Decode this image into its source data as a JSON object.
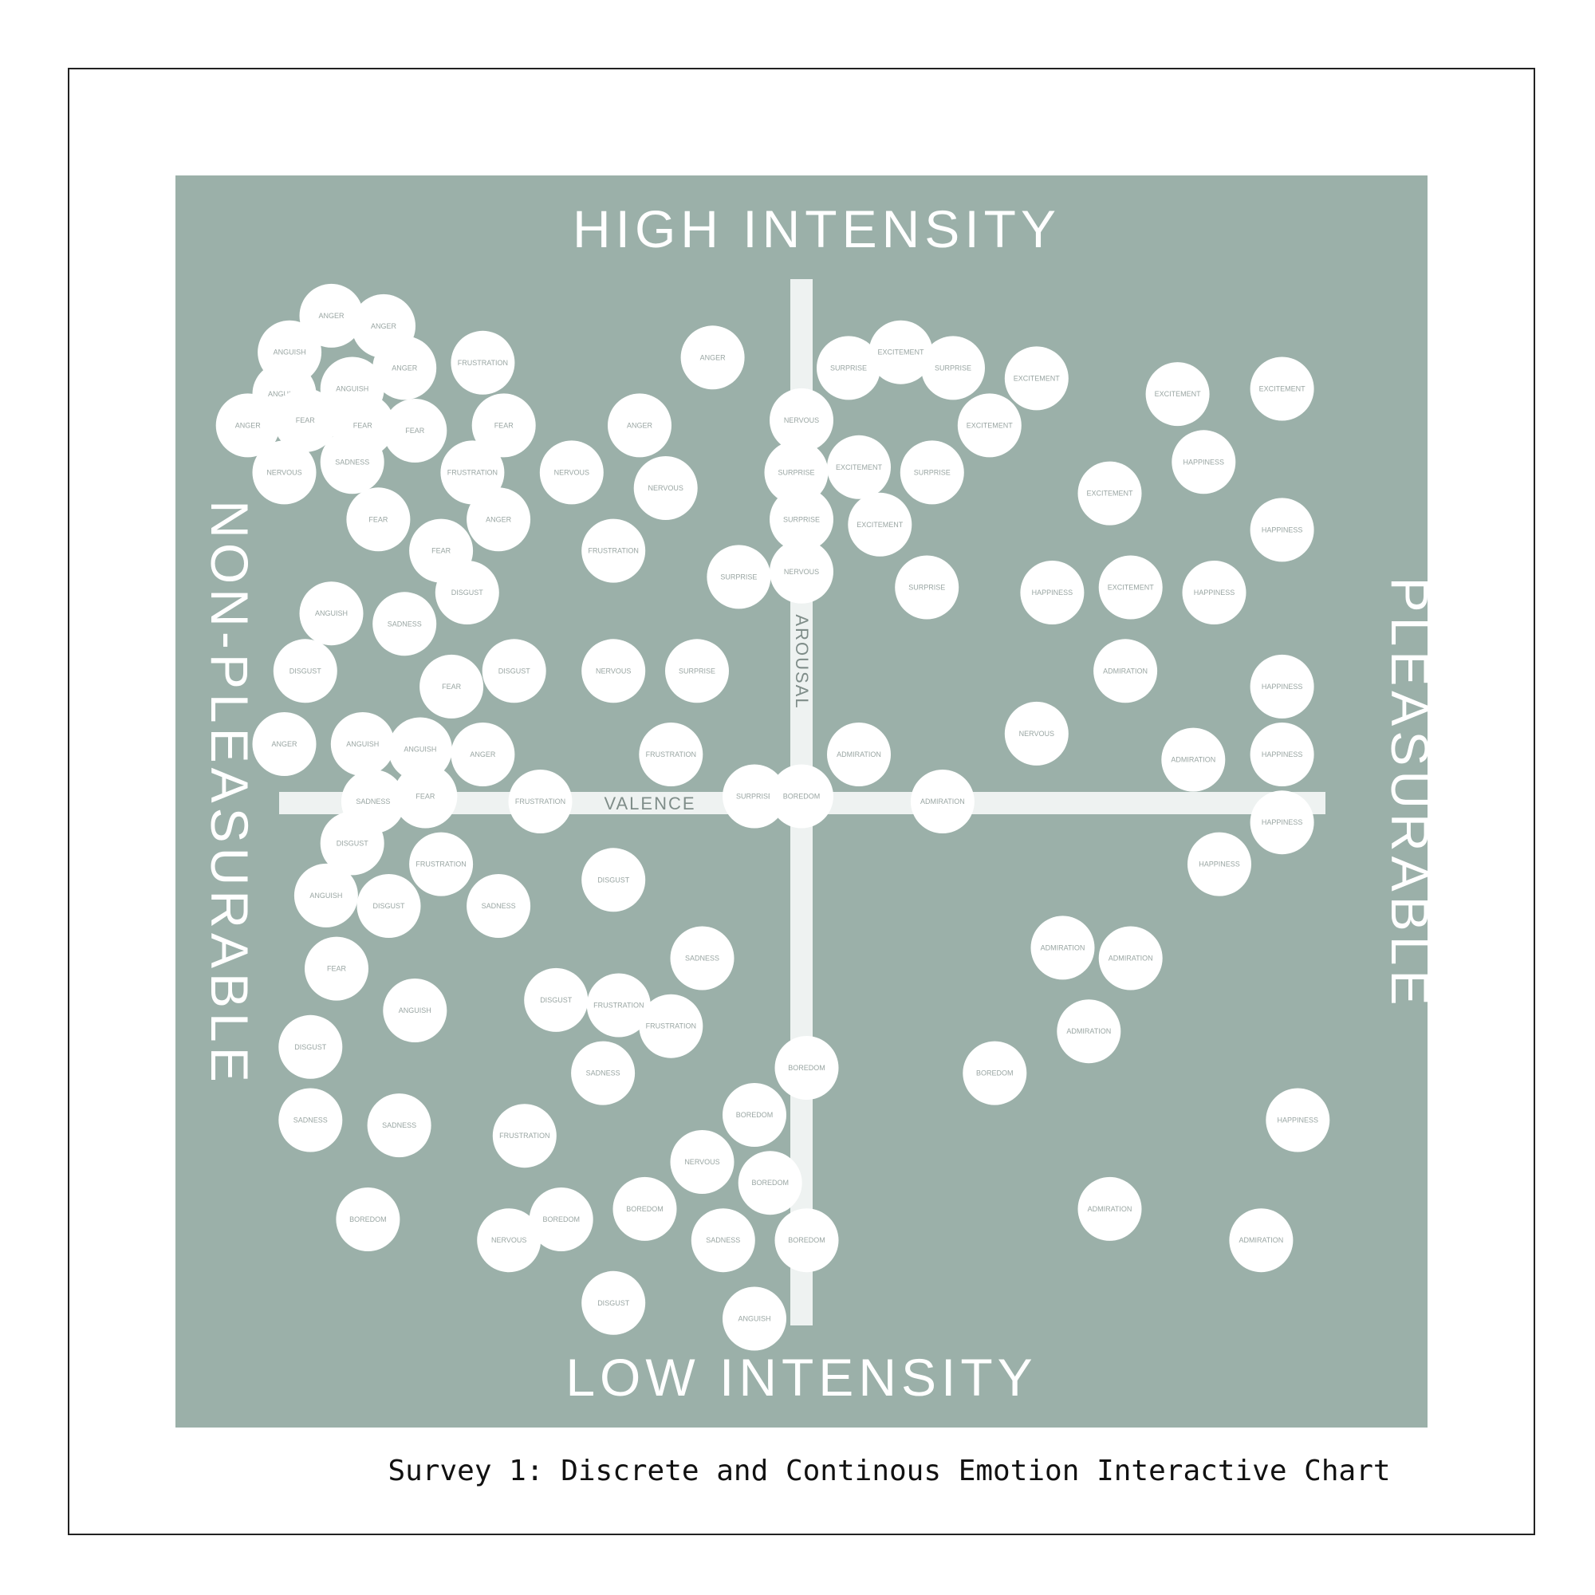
{
  "caption": "Survey 1: Discrete and Continous Emotion Interactive Chart",
  "chart_data": {
    "type": "scatter",
    "title": "",
    "top_label": "HIGH INTENSITY",
    "bottom_label": "LOW INTENSITY",
    "left_label": "NON-PLEASURABLE",
    "right_label": "PLEASURABLE",
    "xlabel": "VALENCE",
    "ylabel": "AROUSAL",
    "xlim": [
      -1,
      1
    ],
    "ylim": [
      -1,
      1
    ],
    "grid": false,
    "colors": {
      "background": "#9bb0a9",
      "bubble": "#ffffff",
      "axis": "#eef2f1",
      "label": "#ffffff",
      "bubble_text": "#9aa6a3"
    },
    "points": [
      {
        "label": "ANGER",
        "x": -0.9,
        "y": 0.93
      },
      {
        "label": "ANGER",
        "x": -0.8,
        "y": 0.91
      },
      {
        "label": "ANGUISH",
        "x": -0.98,
        "y": 0.86
      },
      {
        "label": "ANGER",
        "x": -0.76,
        "y": 0.83
      },
      {
        "label": "FRUSTRATION",
        "x": -0.61,
        "y": 0.84
      },
      {
        "label": "ANGUISH",
        "x": -0.99,
        "y": 0.78
      },
      {
        "label": "ANGUISH",
        "x": -0.86,
        "y": 0.79
      },
      {
        "label": "ANGER",
        "x": -1.06,
        "y": 0.72
      },
      {
        "label": "FEAR",
        "x": -0.95,
        "y": 0.73
      },
      {
        "label": "FEAR",
        "x": -0.84,
        "y": 0.72
      },
      {
        "label": "FEAR",
        "x": -0.74,
        "y": 0.71
      },
      {
        "label": "FEAR",
        "x": -0.57,
        "y": 0.72
      },
      {
        "label": "ANGER",
        "x": -0.31,
        "y": 0.72
      },
      {
        "label": "NERVOUS",
        "x": -0.99,
        "y": 0.63
      },
      {
        "label": "SADNESS",
        "x": -0.86,
        "y": 0.65
      },
      {
        "label": "FRUSTRATION",
        "x": -0.63,
        "y": 0.63
      },
      {
        "label": "NERVOUS",
        "x": -0.44,
        "y": 0.63
      },
      {
        "label": "NERVOUS",
        "x": -0.26,
        "y": 0.6
      },
      {
        "label": "FEAR",
        "x": -0.81,
        "y": 0.54
      },
      {
        "label": "ANGER",
        "x": -0.58,
        "y": 0.54
      },
      {
        "label": "FEAR",
        "x": -0.69,
        "y": 0.48
      },
      {
        "label": "FRUSTRATION",
        "x": -0.36,
        "y": 0.48
      },
      {
        "label": "ANGER",
        "x": -0.17,
        "y": 0.85
      },
      {
        "label": "SURPRISE",
        "x": 0.09,
        "y": 0.83
      },
      {
        "label": "EXCITEMENT",
        "x": 0.19,
        "y": 0.86
      },
      {
        "label": "SURPRISE",
        "x": 0.29,
        "y": 0.83
      },
      {
        "label": "EXCITEMENT",
        "x": 0.45,
        "y": 0.81
      },
      {
        "label": "EXCITEMENT",
        "x": 0.72,
        "y": 0.78
      },
      {
        "label": "EXCITEMENT",
        "x": 0.92,
        "y": 0.79
      },
      {
        "label": "NERVOUS",
        "x": 0.0,
        "y": 0.73
      },
      {
        "label": "EXCITEMENT",
        "x": 0.36,
        "y": 0.72
      },
      {
        "label": "SURPRISE",
        "x": -0.01,
        "y": 0.63
      },
      {
        "label": "EXCITEMENT",
        "x": 0.11,
        "y": 0.64
      },
      {
        "label": "SURPRISE",
        "x": 0.25,
        "y": 0.63
      },
      {
        "label": "HAPPINESS",
        "x": 0.77,
        "y": 0.65
      },
      {
        "label": "EXCITEMENT",
        "x": 0.59,
        "y": 0.59
      },
      {
        "label": "SURPRISE",
        "x": 0.0,
        "y": 0.54
      },
      {
        "label": "EXCITEMENT",
        "x": 0.15,
        "y": 0.53
      },
      {
        "label": "HAPPINESS",
        "x": 0.92,
        "y": 0.52
      },
      {
        "label": "SURPRISE",
        "x": -0.12,
        "y": 0.43
      },
      {
        "label": "NERVOUS",
        "x": 0.0,
        "y": 0.44
      },
      {
        "label": "SURPRISE",
        "x": 0.24,
        "y": 0.41
      },
      {
        "label": "HAPPINESS",
        "x": 0.48,
        "y": 0.4
      },
      {
        "label": "EXCITEMENT",
        "x": 0.63,
        "y": 0.41
      },
      {
        "label": "HAPPINESS",
        "x": 0.79,
        "y": 0.4
      },
      {
        "label": "DISGUST",
        "x": -0.64,
        "y": 0.4
      },
      {
        "label": "ANGUISH",
        "x": -0.9,
        "y": 0.36
      },
      {
        "label": "SADNESS",
        "x": -0.76,
        "y": 0.34
      },
      {
        "label": "DISGUST",
        "x": -0.95,
        "y": 0.25
      },
      {
        "label": "FEAR",
        "x": -0.67,
        "y": 0.22
      },
      {
        "label": "DISGUST",
        "x": -0.55,
        "y": 0.25
      },
      {
        "label": "NERVOUS",
        "x": -0.36,
        "y": 0.25
      },
      {
        "label": "SURPRISE",
        "x": -0.2,
        "y": 0.25
      },
      {
        "label": "ADMIRATION",
        "x": 0.62,
        "y": 0.25
      },
      {
        "label": "HAPPINESS",
        "x": 0.92,
        "y": 0.22
      },
      {
        "label": "NERVOUS",
        "x": 0.45,
        "y": 0.13
      },
      {
        "label": "ANGER",
        "x": -0.99,
        "y": 0.11
      },
      {
        "label": "ANGUISH",
        "x": -0.84,
        "y": 0.11
      },
      {
        "label": "ANGUISH",
        "x": -0.73,
        "y": 0.1
      },
      {
        "label": "ANGER",
        "x": -0.61,
        "y": 0.09
      },
      {
        "label": "FRUSTRATION",
        "x": -0.25,
        "y": 0.09
      },
      {
        "label": "ADMIRATION",
        "x": 0.11,
        "y": 0.09
      },
      {
        "label": "ADMIRATION",
        "x": 0.75,
        "y": 0.08
      },
      {
        "label": "HAPPINESS",
        "x": 0.92,
        "y": 0.09
      },
      {
        "label": "SADNESS",
        "x": -0.82,
        "y": 0.0
      },
      {
        "label": "FEAR",
        "x": -0.72,
        "y": 0.01
      },
      {
        "label": "FRUSTRATION",
        "x": -0.5,
        "y": 0.0
      },
      {
        "label": "SURPRISE",
        "x": -0.09,
        "y": 0.01
      },
      {
        "label": "BOREDOM",
        "x": 0.0,
        "y": 0.01
      },
      {
        "label": "ADMIRATION",
        "x": 0.27,
        "y": 0.0
      },
      {
        "label": "HAPPINESS",
        "x": 0.92,
        "y": -0.04
      },
      {
        "label": "DISGUST",
        "x": -0.86,
        "y": -0.08
      },
      {
        "label": "FRUSTRATION",
        "x": -0.69,
        "y": -0.12
      },
      {
        "label": "HAPPINESS",
        "x": 0.8,
        "y": -0.12
      },
      {
        "label": "DISGUST",
        "x": -0.36,
        "y": -0.15
      },
      {
        "label": "ANGUISH",
        "x": -0.91,
        "y": -0.18
      },
      {
        "label": "DISGUST",
        "x": -0.79,
        "y": -0.2
      },
      {
        "label": "SADNESS",
        "x": -0.58,
        "y": -0.2
      },
      {
        "label": "SADNESS",
        "x": -0.19,
        "y": -0.3
      },
      {
        "label": "ADMIRATION",
        "x": 0.5,
        "y": -0.28
      },
      {
        "label": "ADMIRATION",
        "x": 0.63,
        "y": -0.3
      },
      {
        "label": "FEAR",
        "x": -0.89,
        "y": -0.32
      },
      {
        "label": "ANGUISH",
        "x": -0.74,
        "y": -0.4
      },
      {
        "label": "DISGUST",
        "x": -0.47,
        "y": -0.38
      },
      {
        "label": "FRUSTRATION",
        "x": -0.35,
        "y": -0.39
      },
      {
        "label": "FRUSTRATION",
        "x": -0.25,
        "y": -0.43
      },
      {
        "label": "ADMIRATION",
        "x": 0.55,
        "y": -0.44
      },
      {
        "label": "DISGUST",
        "x": -0.94,
        "y": -0.47
      },
      {
        "label": "SADNESS",
        "x": -0.38,
        "y": -0.52
      },
      {
        "label": "BOREDOM",
        "x": 0.01,
        "y": -0.51
      },
      {
        "label": "BOREDOM",
        "x": 0.37,
        "y": -0.52
      },
      {
        "label": "SADNESS",
        "x": -0.94,
        "y": -0.61
      },
      {
        "label": "SADNESS",
        "x": -0.77,
        "y": -0.62
      },
      {
        "label": "FRUSTRATION",
        "x": -0.53,
        "y": -0.64
      },
      {
        "label": "BOREDOM",
        "x": -0.09,
        "y": -0.6
      },
      {
        "label": "HAPPINESS",
        "x": 0.95,
        "y": -0.61
      },
      {
        "label": "NERVOUS",
        "x": -0.19,
        "y": -0.69
      },
      {
        "label": "BOREDOM",
        "x": -0.06,
        "y": -0.73
      },
      {
        "label": "ADMIRATION",
        "x": 0.59,
        "y": -0.78
      },
      {
        "label": "BOREDOM",
        "x": -0.83,
        "y": -0.8
      },
      {
        "label": "BOREDOM",
        "x": -0.46,
        "y": -0.8
      },
      {
        "label": "BOREDOM",
        "x": -0.3,
        "y": -0.78
      },
      {
        "label": "NERVOUS",
        "x": -0.56,
        "y": -0.84
      },
      {
        "label": "SADNESS",
        "x": -0.15,
        "y": -0.84
      },
      {
        "label": "BOREDOM",
        "x": 0.01,
        "y": -0.84
      },
      {
        "label": "ADMIRATION",
        "x": 0.88,
        "y": -0.84
      },
      {
        "label": "DISGUST",
        "x": -0.36,
        "y": -0.96
      },
      {
        "label": "ANGUISH",
        "x": -0.09,
        "y": -0.99
      }
    ]
  }
}
